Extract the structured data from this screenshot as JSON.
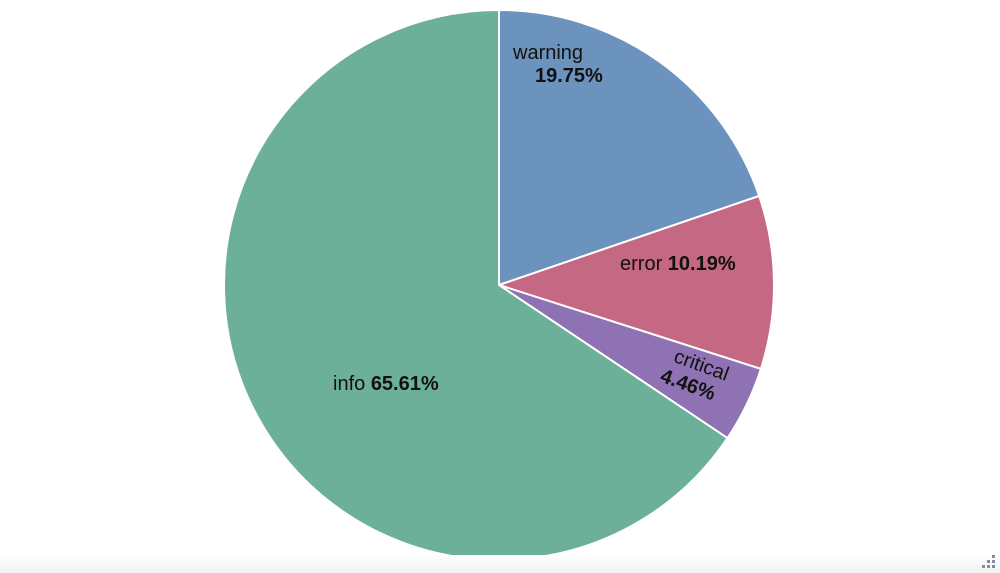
{
  "chart_data": {
    "type": "pie",
    "slices": [
      {
        "label": "warning",
        "value": 19.75,
        "value_label": "19.75%",
        "color": "#6b93bd"
      },
      {
        "label": "error",
        "value": 10.19,
        "value_label": "10.19%",
        "color": "#c56883"
      },
      {
        "label": "critical",
        "value": 4.46,
        "value_label": "4.46%",
        "color": "#8e72b3"
      },
      {
        "label": "info",
        "value": 65.61,
        "value_label": "65.61%",
        "color": "#6db09a"
      }
    ],
    "start_angle": "top",
    "direction": "clockwise",
    "legend": "none"
  },
  "ui": {
    "resize_grip_icon": "resize-grip-icon"
  }
}
